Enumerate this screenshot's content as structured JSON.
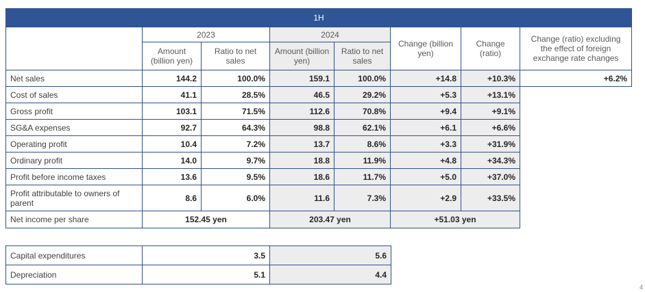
{
  "header": {
    "period": "1H",
    "year_2023": "2023",
    "year_2024": "2024",
    "amount": "Amount (billion yen)",
    "ratio": "Ratio to net sales",
    "change_billion": "Change (billion yen)",
    "change_ratio": "Change (ratio)",
    "change_excl_fx": "Change (ratio) excluding the effect of foreign exchange rate changes"
  },
  "rows": [
    {
      "label": "Net sales",
      "amt_2023": "144.2",
      "ratio_2023": "100.0%",
      "amt_2024": "159.1",
      "ratio_2024": "100.0%",
      "chg": "+14.8",
      "chg_ratio": "+10.3%",
      "chg_fx": "+6.2%"
    },
    {
      "label": "Cost of sales",
      "amt_2023": "41.1",
      "ratio_2023": "28.5%",
      "amt_2024": "46.5",
      "ratio_2024": "29.2%",
      "chg": "+5.3",
      "chg_ratio": "+13.1%"
    },
    {
      "label": "Gross profit",
      "amt_2023": "103.1",
      "ratio_2023": "71.5%",
      "amt_2024": "112.6",
      "ratio_2024": "70.8%",
      "chg": "+9.4",
      "chg_ratio": "+9.1%"
    },
    {
      "label": "SG&A expenses",
      "amt_2023": "92.7",
      "ratio_2023": "64.3%",
      "amt_2024": "98.8",
      "ratio_2024": "62.1%",
      "chg": "+6.1",
      "chg_ratio": "+6.6%"
    },
    {
      "label": "Operating profit",
      "amt_2023": "10.4",
      "ratio_2023": "7.2%",
      "amt_2024": "13.7",
      "ratio_2024": "8.6%",
      "chg": "+3.3",
      "chg_ratio": "+31.9%"
    },
    {
      "label": "Ordinary profit",
      "amt_2023": "14.0",
      "ratio_2023": "9.7%",
      "amt_2024": "18.8",
      "ratio_2024": "11.9%",
      "chg": "+4.8",
      "chg_ratio": "+34.3%"
    },
    {
      "label": "Profit before income taxes",
      "amt_2023": "13.6",
      "ratio_2023": "9.5%",
      "amt_2024": "18.6",
      "ratio_2024": "11.7%",
      "chg": "+5.0",
      "chg_ratio": "+37.0%"
    },
    {
      "label": "Profit attributable to owners of parent",
      "amt_2023": "8.6",
      "ratio_2023": "6.0%",
      "amt_2024": "11.6",
      "ratio_2024": "7.3%",
      "chg": "+2.9",
      "chg_ratio": "+33.5%"
    }
  ],
  "eps": {
    "label": "Net income per share",
    "v2023": "152.45 yen",
    "v2024": "203.47 yen",
    "chg": "+51.03 yen"
  },
  "capex": [
    {
      "label": "Capital expenditures",
      "v2023": "3.5",
      "v2024": "5.6"
    },
    {
      "label": "Depreciation",
      "v2023": "5.1",
      "v2024": "4.4"
    }
  ],
  "page_number": "4"
}
